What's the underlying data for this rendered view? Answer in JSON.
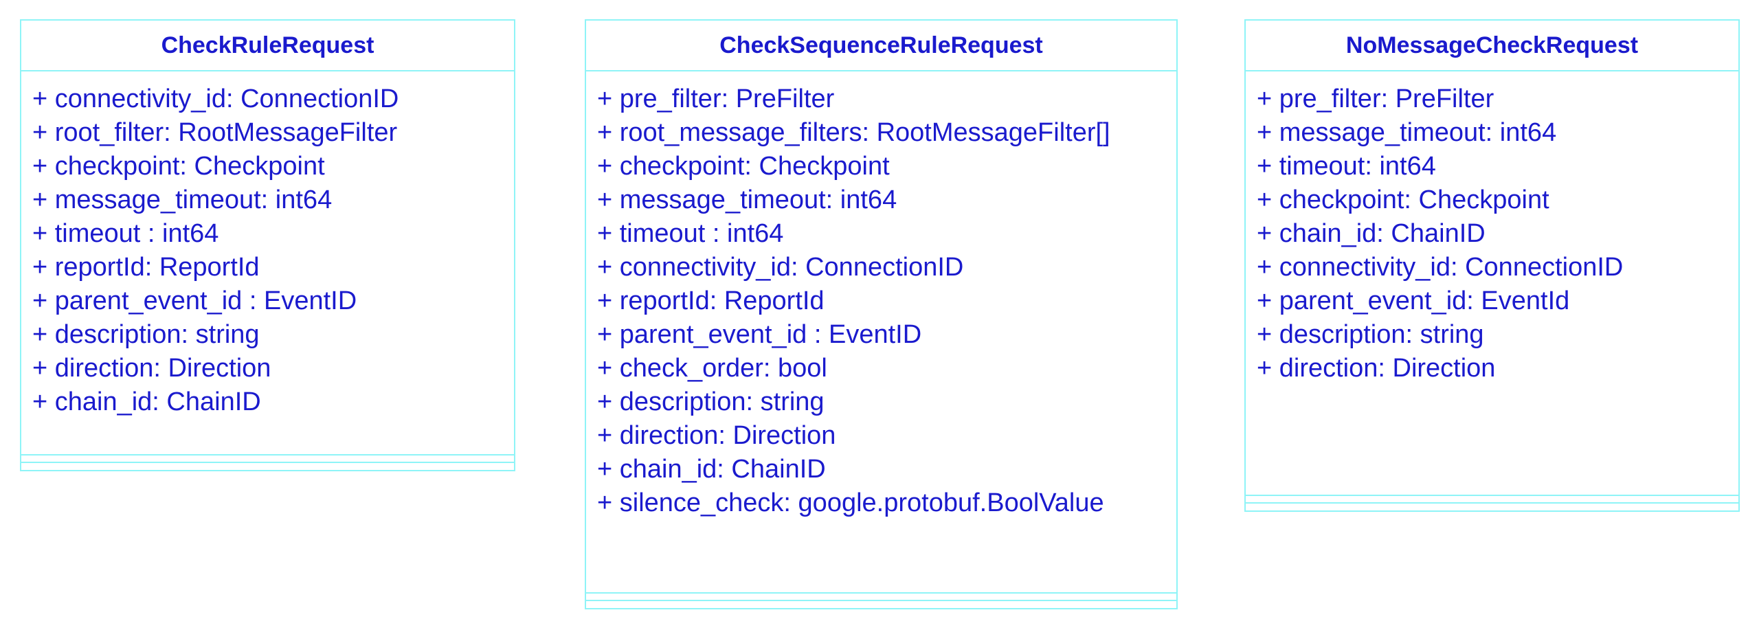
{
  "classes": [
    {
      "name": "CheckRuleRequest",
      "attributes": [
        "+ connectivity_id: ConnectionID",
        "+ root_filter: RootMessageFilter",
        "+ checkpoint: Checkpoint",
        "+ message_timeout: int64",
        "+ timeout : int64",
        "+ reportId: ReportId",
        "+ parent_event_id : EventID",
        "+ description: string",
        "+ direction: Direction",
        "+ chain_id: ChainID"
      ]
    },
    {
      "name": "CheckSequenceRuleRequest",
      "attributes": [
        "+ pre_filter: PreFilter",
        "+ root_message_filters: RootMessageFilter[]",
        "+ checkpoint: Checkpoint",
        "+ message_timeout: int64",
        "+ timeout : int64",
        "+ connectivity_id: ConnectionID",
        "+ reportId: ReportId",
        "+ parent_event_id : EventID",
        "+ check_order: bool",
        "+ description: string",
        "+ direction: Direction",
        "+ chain_id: ChainID",
        "+ silence_check: google.protobuf.BoolValue"
      ]
    },
    {
      "name": "NoMessageCheckRequest",
      "attributes": [
        "+ pre_filter: PreFilter",
        "+ message_timeout: int64",
        "+ timeout: int64",
        "+ checkpoint: Checkpoint",
        "+ chain_id: ChainID",
        "+ connectivity_id: ConnectionID",
        "+ parent_event_id: EventId",
        "+ description: string",
        "+ direction: Direction"
      ]
    }
  ]
}
